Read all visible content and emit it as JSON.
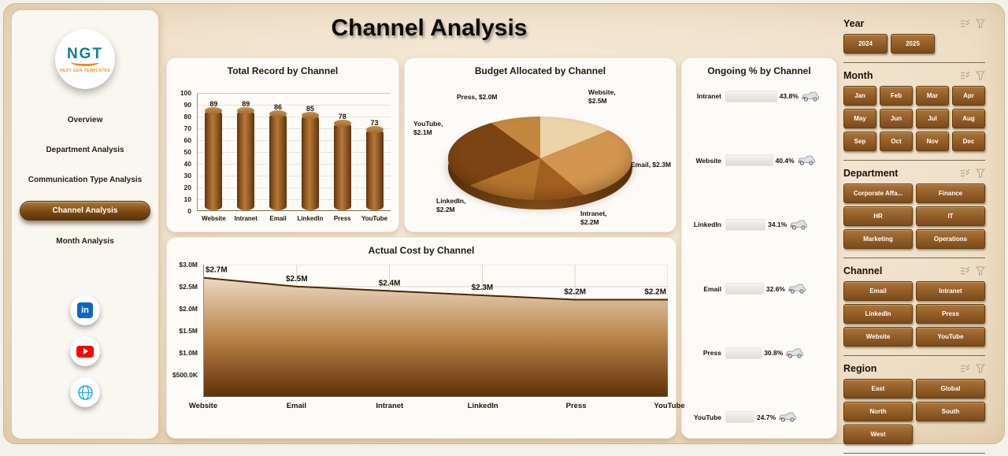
{
  "title": "Channel Analysis",
  "sidebar": {
    "logo": {
      "text": "NGT",
      "subtext": "NEXT GEN TEMPLATES"
    },
    "items": [
      {
        "label": "Overview",
        "active": false
      },
      {
        "label": "Department Analysis",
        "active": false
      },
      {
        "label": "Communication Type Analysis",
        "active": false
      },
      {
        "label": "Channel Analysis",
        "active": true
      },
      {
        "label": "Month Analysis",
        "active": false
      }
    ],
    "social": [
      "linkedin",
      "youtube",
      "website"
    ]
  },
  "chart_data": [
    {
      "type": "bar",
      "title": "Total Record by Channel",
      "categories": [
        "Website",
        "Intranet",
        "Email",
        "LinkedIn",
        "Press",
        "YouTube"
      ],
      "values": [
        89,
        89,
        86,
        85,
        78,
        73
      ],
      "ylim": [
        0,
        100
      ],
      "ytick_step": 10,
      "bar_color": "#9A5B1F",
      "grid": true,
      "legend": false
    },
    {
      "type": "pie",
      "title": "Budget Allocated by Channel",
      "unit": "$M",
      "slices": [
        {
          "name": "Website",
          "value": 2.5,
          "label": "Website, $2.5M",
          "color": "#EDD3A8"
        },
        {
          "name": "Email",
          "value": 2.3,
          "label": "Email, $2.3M",
          "color": "#D2954F"
        },
        {
          "name": "Intranet",
          "value": 2.2,
          "label": "Intranet, $2.2M",
          "color": "#A26020"
        },
        {
          "name": "LinkedIn",
          "value": 2.2,
          "label": "LinkedIn, $2.2M",
          "color": "#B5752F"
        },
        {
          "name": "YouTube",
          "value": 2.1,
          "label": "YouTube, $2.1M",
          "color": "#7C4413"
        },
        {
          "name": "Press",
          "value": 2.0,
          "label": "Press, $2.0M",
          "color": "#C4873E"
        }
      ]
    },
    {
      "type": "area",
      "title": "Actual Cost by Channel",
      "categories": [
        "Website",
        "Email",
        "Intranet",
        "LinkedIn",
        "Press",
        "YouTube"
      ],
      "values": [
        2.7,
        2.5,
        2.4,
        2.3,
        2.2,
        2.2
      ],
      "labels": [
        "$2.7M",
        "$2.5M",
        "$2.4M",
        "$2.3M",
        "$2.2M",
        "$2.2M"
      ],
      "ymax": 3.0,
      "yticks": [
        {
          "v": 3.0,
          "label": "$3.0M"
        },
        {
          "v": 2.5,
          "label": "$2.5M"
        },
        {
          "v": 2.0,
          "label": "$2.0M"
        },
        {
          "v": 1.5,
          "label": "$1.5M"
        },
        {
          "v": 1.0,
          "label": "$1.0M"
        },
        {
          "v": 0.5,
          "label": "$500.0K"
        }
      ],
      "grid": true
    },
    {
      "type": "bar",
      "orientation": "horizontal",
      "title": "Ongoing % by Channel",
      "categories": [
        "Intranet",
        "Website",
        "LinkedIn",
        "Email",
        "Press",
        "YouTube"
      ],
      "values": [
        43.8,
        40.4,
        34.1,
        32.6,
        30.8,
        24.7
      ],
      "labels": [
        "43.8%",
        "40.4%",
        "34.1%",
        "32.6%",
        "30.8%",
        "24.7%"
      ]
    }
  ],
  "slicers": [
    {
      "title": "Year",
      "options": [
        "2024",
        "2025"
      ]
    },
    {
      "title": "Month",
      "options": [
        "Jan",
        "Feb",
        "Mar",
        "Apr",
        "May",
        "Jun",
        "Jul",
        "Aug",
        "Sep",
        "Oct",
        "Nov",
        "Dec"
      ]
    },
    {
      "title": "Department",
      "options": [
        "Corporate Affa...",
        "Finance",
        "HR",
        "IT",
        "Marketing",
        "Operations"
      ]
    },
    {
      "title": "Channel",
      "options": [
        "Email",
        "Intranet",
        "LinkedIn",
        "Press",
        "Website",
        "YouTube"
      ]
    },
    {
      "title": "Region",
      "options": [
        "East",
        "Global",
        "North",
        "South",
        "West"
      ]
    }
  ],
  "colors": {
    "accent": "#9A5B1F",
    "background": "#F2E4CF",
    "card": "#FDFBF8"
  }
}
